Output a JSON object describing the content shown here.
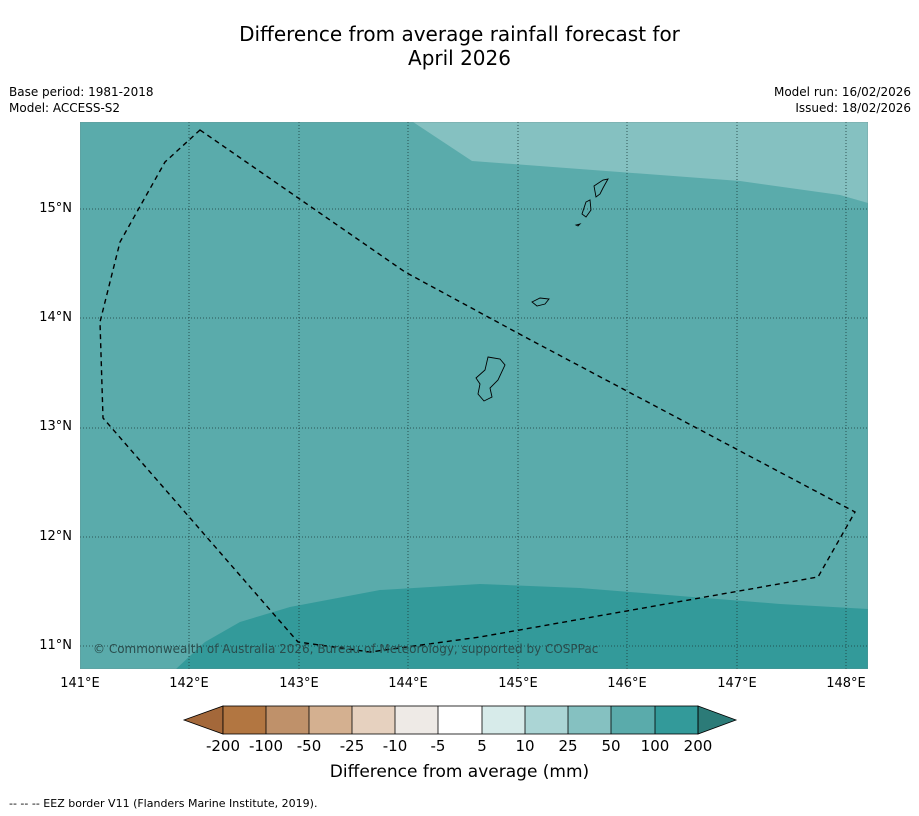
{
  "title": {
    "line1": "Difference from average rainfall forecast for",
    "line2": "April 2026"
  },
  "meta_left": {
    "base_period": "Base period: 1981-2018",
    "model": "Model: ACCESS-S2"
  },
  "meta_right": {
    "model_run": "Model run: 16/02/2026",
    "issued": "Issued: 18/02/2026"
  },
  "map": {
    "lon_range": [
      141,
      148.2
    ],
    "lat_range": [
      10.8,
      15.8
    ],
    "lat_ticks": [
      "15°N",
      "14°N",
      "13°N",
      "12°N",
      "11°N"
    ],
    "lon_ticks": [
      "141°E",
      "142°E",
      "143°E",
      "144°E",
      "145°E",
      "146°E",
      "147°E",
      "148°E"
    ],
    "copyright": "© Commonwealth of Australia 2026, Bureau of Meteorology, supported by COSPPac",
    "fill_colors": {
      "range_25_50": "#85c1c1",
      "range_50_100": "#5aabab",
      "range_100_200": "#339a9a"
    }
  },
  "colorbar": {
    "title": "Difference from average (mm)",
    "labels": [
      "-200",
      "-100",
      "-50",
      "-25",
      "-10",
      "-5",
      "5",
      "10",
      "25",
      "50",
      "100",
      "200"
    ],
    "colors": [
      "#a4683a",
      "#b27641",
      "#bf916a",
      "#d4b090",
      "#e6d1bf",
      "#eeeae6",
      "#ffffff",
      "#d7ebea",
      "#abd5d5",
      "#85c1c1",
      "#5aabab",
      "#339a9a",
      "#2c7b78"
    ]
  },
  "footnote": "--  --  -- EEZ border V11 (Flanders Marine Institute, 2019)."
}
